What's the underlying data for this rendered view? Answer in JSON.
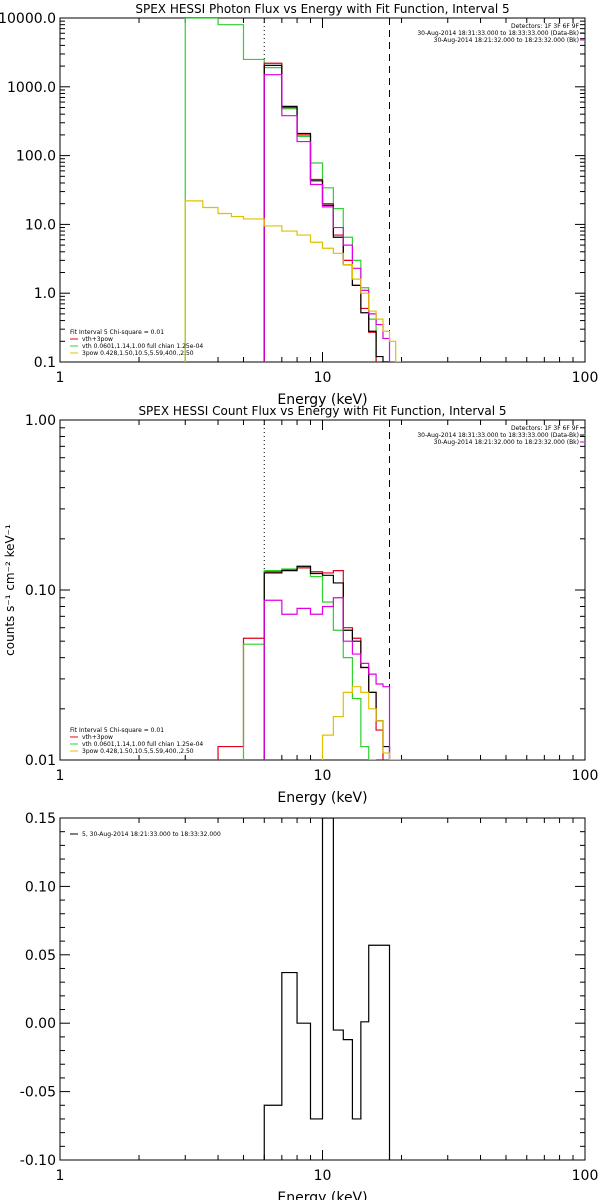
{
  "colors": {
    "black": "#000000",
    "red": "#e0001a",
    "green": "#2fd12f",
    "magenta": "#e000e0",
    "yellow": "#e0c000"
  },
  "chart_data": [
    {
      "type": "line",
      "title": "SPEX HESSI Photon Flux vs Energy with Fit Function, Interval 5",
      "xlabel": "Energy (keV)",
      "ylabel": "",
      "x_scale": "log",
      "y_scale": "log",
      "xlim": [
        1,
        100
      ],
      "ylim": [
        0.1,
        10000
      ],
      "x_ticks": [
        {
          "v": 1,
          "label": "1"
        },
        {
          "v": 10,
          "label": "10"
        },
        {
          "v": 100,
          "label": "100"
        }
      ],
      "y_ticks": [
        {
          "v": 0.1,
          "label": "0.1"
        },
        {
          "v": 1,
          "label": "1.0"
        },
        {
          "v": 10,
          "label": "10.0"
        },
        {
          "v": 100,
          "label": "100.0"
        },
        {
          "v": 1000,
          "label": "1000.0"
        },
        {
          "v": 10000,
          "label": "10000.0"
        }
      ],
      "vlines": [
        {
          "x": 6.0,
          "style": "dotted"
        },
        {
          "x": 18.0,
          "style": "dashed"
        }
      ],
      "info_top_right": [
        "Detectors: 1F 3F 6F 9F",
        "30-Aug-2014 18:31:33.000 to 18:33:33.000 (Data-Bk)",
        "30-Aug-2014 18:21:32.000 to 18:23:32.000 (Bk)"
      ],
      "info_bottom_left": [
        {
          "text": "Fit Interval 5   Chi-square = 0.01",
          "color": "black"
        },
        {
          "text": "vth+3pow",
          "color": "red"
        },
        {
          "text": "vth 0.0601,1.14,1.00  full chian 1.25e-04",
          "color": "green"
        },
        {
          "text": "3pow 0.428,1.50,10.5,5.59,400.,2.50",
          "color": "yellow"
        }
      ],
      "series": [
        {
          "color": "green",
          "bins": [
            3.0,
            4.0,
            5.0,
            6.0,
            7.0,
            8.0,
            9.0,
            10.0,
            11.0,
            12.0,
            13.0,
            14.0,
            15.0,
            16.0,
            17.0,
            18.0
          ],
          "values": [
            15000,
            8000,
            2500,
            1900,
            480,
            190,
            78,
            34,
            17,
            6.5,
            3,
            1.2,
            0.42,
            0.1,
            0.05
          ]
        },
        {
          "color": "red",
          "bins": [
            6.0,
            7.0,
            8.0,
            9.0,
            10.0,
            11.0,
            12.0,
            13.0,
            14.0,
            15.0,
            16.0,
            17.0,
            18.0,
            19.0,
            20.0
          ],
          "values": [
            2200,
            500,
            200,
            45,
            20,
            7,
            3,
            1.3,
            0.6,
            0.27,
            0.1,
            0.06,
            0.05,
            0.05
          ]
        },
        {
          "color": "black",
          "bins": [
            6.0,
            7.0,
            8.0,
            9.0,
            10.0,
            11.0,
            12.0,
            13.0,
            14.0,
            15.0,
            16.0,
            17.0,
            18.0
          ],
          "values": [
            2050,
            520,
            210,
            43,
            19,
            6.5,
            2.6,
            1.3,
            0.52,
            0.28,
            0.12,
            0.05
          ]
        },
        {
          "color": "magenta",
          "bins": [
            6.0,
            7.0,
            8.0,
            9.0,
            10.0,
            11.0,
            12.0,
            13.0,
            14.0,
            15.0,
            16.0,
            17.0,
            18.0
          ],
          "values": [
            1500,
            380,
            160,
            38,
            18,
            9,
            5,
            2.3,
            1.1,
            0.5,
            0.35,
            0.22
          ]
        },
        {
          "color": "yellow",
          "bins": [
            3.0,
            3.5,
            4.0,
            4.5,
            5.0,
            6.0,
            7.0,
            8.0,
            9.0,
            10.0,
            11.0,
            12.0,
            13.0,
            14.0,
            15.0,
            16.0,
            17.0,
            18.0,
            19.0,
            20.0
          ],
          "values": [
            22,
            17.6,
            14.4,
            13,
            12,
            9.5,
            8,
            7,
            5.5,
            4.5,
            3.8,
            2.6,
            1.6,
            1.0,
            0.55,
            0.42,
            0.28,
            0.2,
            0.1
          ]
        }
      ]
    },
    {
      "type": "line",
      "title": "SPEX HESSI Count Flux vs Energy with Fit Function, Interval 5",
      "xlabel": "Energy (keV)",
      "ylabel": "counts s⁻¹ cm⁻² keV⁻¹",
      "x_scale": "log",
      "y_scale": "log",
      "xlim": [
        1,
        100
      ],
      "ylim": [
        0.01,
        1.0
      ],
      "x_ticks": [
        {
          "v": 1,
          "label": "1"
        },
        {
          "v": 10,
          "label": "10"
        },
        {
          "v": 100,
          "label": "100"
        }
      ],
      "y_ticks": [
        {
          "v": 0.01,
          "label": "0.01"
        },
        {
          "v": 0.1,
          "label": "0.10"
        },
        {
          "v": 1.0,
          "label": "1.00"
        }
      ],
      "vlines": [
        {
          "x": 6.0,
          "style": "dotted"
        },
        {
          "x": 18.0,
          "style": "dashed"
        }
      ],
      "info_top_right": [
        "Detectors: 1F 3F 6F 9F",
        "30-Aug-2014 18:31:33.000 to 18:33:33.000 (Data-Bk)",
        "30-Aug-2014 18:21:32.000 to 18:23:32.000 (Bk)"
      ],
      "info_bottom_left": [
        {
          "text": "Fit Interval 5   Chi-square = 0.01",
          "color": "black"
        },
        {
          "text": "vth+3pow",
          "color": "red"
        },
        {
          "text": "vth 0.0601,1.14,1.00  full chian 1.25e-04",
          "color": "green"
        },
        {
          "text": "3pow 0.428,1.50,10.5,5.59,400.,2.50",
          "color": "yellow"
        }
      ],
      "series": [
        {
          "color": "red",
          "bins": [
            4.0,
            5.0,
            6.0,
            7.0,
            8.0,
            9.0,
            10.0,
            11.0,
            12.0,
            13.0,
            14.0,
            15.0,
            16.0,
            17.0,
            18.0,
            19.0,
            20.0
          ],
          "values": [
            0.012,
            0.052,
            0.128,
            0.132,
            0.135,
            0.128,
            0.126,
            0.13,
            0.06,
            0.052,
            0.035,
            0.025,
            0.015,
            0.01,
            0.01,
            0.01
          ]
        },
        {
          "color": "green",
          "bins": [
            5.0,
            6.0,
            7.0,
            8.0,
            9.0,
            10.0,
            11.0,
            12.0,
            13.0,
            14.0,
            15.0,
            16.0
          ],
          "values": [
            0.048,
            0.13,
            0.133,
            0.137,
            0.12,
            0.085,
            0.058,
            0.04,
            0.023,
            0.012,
            0.01
          ]
        },
        {
          "color": "black",
          "bins": [
            6.0,
            7.0,
            8.0,
            9.0,
            10.0,
            11.0,
            12.0,
            13.0,
            14.0,
            15.0,
            16.0,
            17.0,
            18.0
          ],
          "values": [
            0.126,
            0.13,
            0.138,
            0.125,
            0.122,
            0.11,
            0.058,
            0.05,
            0.035,
            0.025,
            0.017,
            0.012
          ]
        },
        {
          "color": "magenta",
          "bins": [
            6.0,
            7.0,
            8.0,
            9.0,
            10.0,
            11.0,
            12.0,
            13.0,
            14.0,
            15.0,
            16.0,
            17.0,
            18.0
          ],
          "values": [
            0.087,
            0.072,
            0.078,
            0.072,
            0.08,
            0.09,
            0.05,
            0.042,
            0.037,
            0.032,
            0.028,
            0.027
          ]
        },
        {
          "color": "yellow",
          "bins": [
            10.0,
            11.0,
            12.0,
            13.0,
            14.0,
            15.0,
            16.0,
            17.0,
            18.0,
            19.0,
            20.0
          ],
          "values": [
            0.014,
            0.018,
            0.025,
            0.027,
            0.025,
            0.02,
            0.017,
            0.011,
            0.01,
            0.01
          ]
        }
      ]
    },
    {
      "type": "line",
      "title": "",
      "xlabel": "Energy (keV)",
      "ylabel": "",
      "x_scale": "log",
      "y_scale": "linear",
      "xlim": [
        1,
        100
      ],
      "ylim": [
        -0.1,
        0.15
      ],
      "x_ticks": [
        {
          "v": 1,
          "label": "1"
        },
        {
          "v": 10,
          "label": "10"
        },
        {
          "v": 100,
          "label": "100"
        }
      ],
      "y_ticks": [
        {
          "v": -0.1,
          "label": "-0.10"
        },
        {
          "v": -0.05,
          "label": "-0.05"
        },
        {
          "v": 0.0,
          "label": "0.00"
        },
        {
          "v": 0.05,
          "label": "0.05"
        },
        {
          "v": 0.1,
          "label": "0.10"
        },
        {
          "v": 0.15,
          "label": "0.15"
        }
      ],
      "vlines": [],
      "legend": [
        {
          "text": "5, 30-Aug-2014 18:21:33.000 to 18:33:32.000",
          "color": "black"
        }
      ],
      "series": [
        {
          "color": "black",
          "bins": [
            6.0,
            7.0,
            8.0,
            9.0,
            10.0,
            11.0,
            12.0,
            13.0,
            14.0,
            15.0,
            16.0,
            17.0,
            18.0
          ],
          "values": [
            -0.06,
            0.037,
            0.0,
            -0.07,
            0.15,
            -0.005,
            -0.012,
            -0.07,
            0.001,
            0.057,
            0.057,
            0.057
          ]
        }
      ]
    }
  ]
}
